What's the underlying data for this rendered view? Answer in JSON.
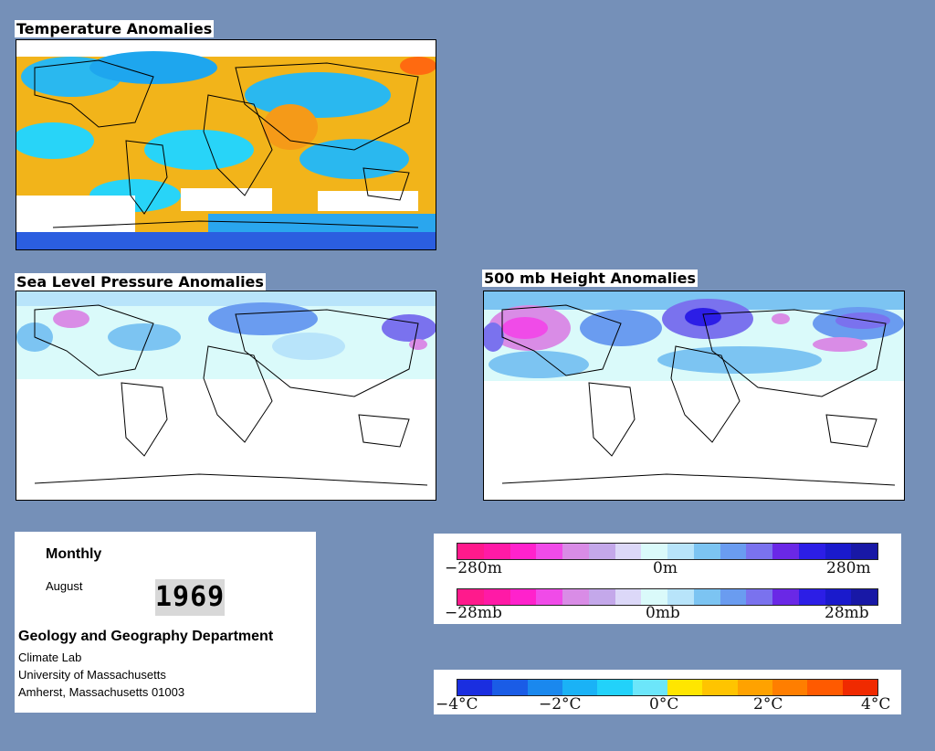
{
  "panels": {
    "temperature": {
      "title": "Temperature Anomalies"
    },
    "pressure": {
      "title": "Sea Level Pressure Anomalies"
    },
    "height": {
      "title": "500 mb Height Anomalies"
    }
  },
  "info": {
    "period": "Monthly",
    "month": "August",
    "year": "1969",
    "department": "Geology and Geography Department",
    "lab": "Climate Lab",
    "university": "University of Massachusetts",
    "address": "Amherst, Massachusetts 01003"
  },
  "legend_height": {
    "min": "−280m",
    "mid": "0m",
    "max": "280m"
  },
  "legend_pressure": {
    "min": "−28mb",
    "mid": "0mb",
    "max": "28mb"
  },
  "legend_temp": {
    "t1": "−4°C",
    "t2": "−2°C",
    "t3": "0°C",
    "t4": "2°C",
    "t5": "4°C"
  },
  "colors": {
    "anomaly_scale": [
      "#ff1a8c",
      "#ff1aa6",
      "#ff22cc",
      "#f04be8",
      "#d98ce6",
      "#c4a8ea",
      "#dcd8f8",
      "#dafafa",
      "#b8e4fa",
      "#7cc4f2",
      "#6a9cf0",
      "#7a72ee",
      "#6a28e6",
      "#2c1ee6",
      "#1a1acc",
      "#1818a6"
    ],
    "temp_scale": [
      "#1a2ee0",
      "#1a5ce6",
      "#1a88ee",
      "#1ab2f6",
      "#22d2fa",
      "#6ce6fa",
      "#ffe600",
      "#ffc400",
      "#ffa200",
      "#ff7e00",
      "#ff5a00",
      "#f02a00"
    ]
  }
}
